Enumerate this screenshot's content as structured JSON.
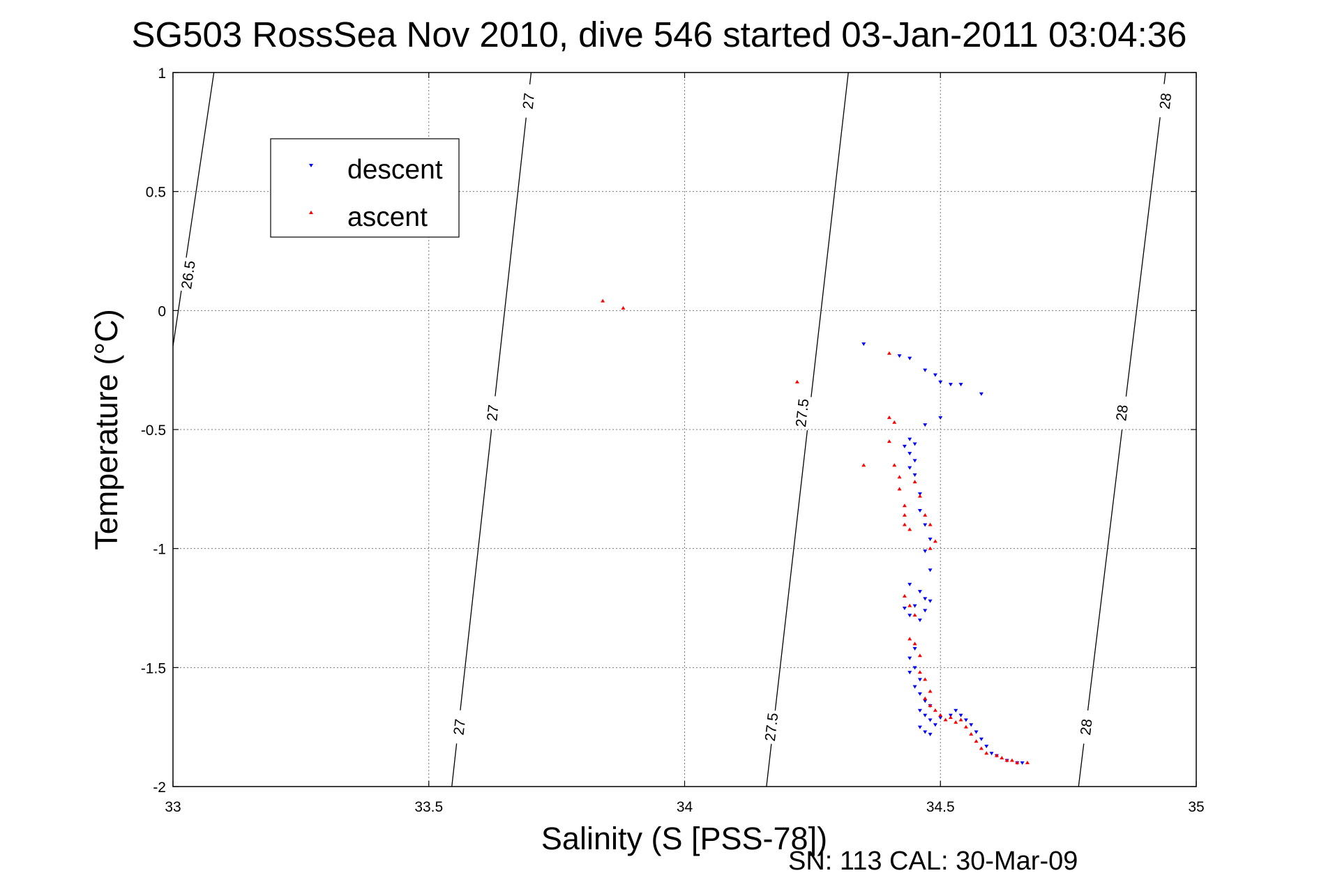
{
  "chart_data": {
    "type": "scatter",
    "title": "SG503 RossSea Nov 2010, dive 546 started 03-Jan-2011 03:04:36",
    "xlabel": "Salinity (S [PSS-78])",
    "ylabel": "Temperature (°C)",
    "xlim": [
      33,
      35
    ],
    "ylim": [
      -2,
      1
    ],
    "x_ticks": [
      "33",
      "33.5",
      "34",
      "34.5",
      "35"
    ],
    "y_ticks": [
      "1",
      "0.5",
      "0",
      "-0.5",
      "-1",
      "-1.5",
      "-2"
    ],
    "grid": true,
    "legend_position": "top-left",
    "footer": "SN: 113  CAL: 30-Mar-09",
    "contours": [
      {
        "label": "26.5",
        "points": [
          [
            33.0,
            -0.15
          ],
          [
            33.08,
            1.0
          ]
        ],
        "labels_at": [
          [
            33.03,
            0.15
          ]
        ]
      },
      {
        "label": "27",
        "points": [
          [
            33.545,
            -2.0
          ],
          [
            33.7,
            1.0
          ]
        ],
        "labels_at": [
          [
            33.56,
            -1.75
          ],
          [
            33.625,
            -0.43
          ],
          [
            33.695,
            0.88
          ]
        ]
      },
      {
        "label": "27.5",
        "points": [
          [
            34.16,
            -2.0
          ],
          [
            34.32,
            1.0
          ]
        ],
        "labels_at": [
          [
            34.17,
            -1.75
          ],
          [
            34.23,
            -0.43
          ]
        ]
      },
      {
        "label": "28",
        "points": [
          [
            34.77,
            -2.0
          ],
          [
            34.94,
            1.0
          ]
        ],
        "labels_at": [
          [
            34.785,
            -1.75
          ],
          [
            34.855,
            -0.43
          ],
          [
            34.94,
            0.88
          ]
        ]
      }
    ],
    "series": [
      {
        "name": "descent",
        "color": "#0000ff",
        "marker": "triangle-down",
        "points": [
          [
            34.35,
            -0.14
          ],
          [
            34.42,
            -0.19
          ],
          [
            34.44,
            -0.2
          ],
          [
            34.47,
            -0.25
          ],
          [
            34.49,
            -0.27
          ],
          [
            34.5,
            -0.3
          ],
          [
            34.52,
            -0.31
          ],
          [
            34.54,
            -0.31
          ],
          [
            34.58,
            -0.35
          ],
          [
            34.5,
            -0.45
          ],
          [
            34.47,
            -0.48
          ],
          [
            34.44,
            -0.54
          ],
          [
            34.45,
            -0.56
          ],
          [
            34.43,
            -0.57
          ],
          [
            34.44,
            -0.6
          ],
          [
            34.45,
            -0.63
          ],
          [
            34.44,
            -0.66
          ],
          [
            34.45,
            -0.69
          ],
          [
            34.46,
            -0.77
          ],
          [
            34.46,
            -0.84
          ],
          [
            34.47,
            -0.9
          ],
          [
            34.48,
            -0.96
          ],
          [
            34.47,
            -1.01
          ],
          [
            34.48,
            -1.09
          ],
          [
            34.44,
            -1.15
          ],
          [
            34.46,
            -1.18
          ],
          [
            34.47,
            -1.21
          ],
          [
            34.45,
            -1.24
          ],
          [
            34.43,
            -1.25
          ],
          [
            34.48,
            -1.22
          ],
          [
            34.44,
            -1.28
          ],
          [
            34.46,
            -1.3
          ],
          [
            34.47,
            -1.26
          ],
          [
            34.45,
            -1.42
          ],
          [
            34.44,
            -1.46
          ],
          [
            34.45,
            -1.5
          ],
          [
            34.44,
            -1.52
          ],
          [
            34.46,
            -1.55
          ],
          [
            34.45,
            -1.58
          ],
          [
            34.46,
            -1.61
          ],
          [
            34.47,
            -1.64
          ],
          [
            34.48,
            -1.66
          ],
          [
            34.46,
            -1.68
          ],
          [
            34.47,
            -1.7
          ],
          [
            34.48,
            -1.72
          ],
          [
            34.49,
            -1.74
          ],
          [
            34.46,
            -1.75
          ],
          [
            34.47,
            -1.77
          ],
          [
            34.48,
            -1.78
          ],
          [
            34.5,
            -1.71
          ],
          [
            34.52,
            -1.7
          ],
          [
            34.53,
            -1.68
          ],
          [
            34.54,
            -1.7
          ],
          [
            34.55,
            -1.72
          ],
          [
            34.56,
            -1.74
          ],
          [
            34.57,
            -1.77
          ],
          [
            34.58,
            -1.8
          ],
          [
            34.59,
            -1.83
          ],
          [
            34.6,
            -1.86
          ],
          [
            34.61,
            -1.87
          ],
          [
            34.63,
            -1.89
          ],
          [
            34.65,
            -1.9
          ],
          [
            34.66,
            -1.9
          ]
        ]
      },
      {
        "name": "ascent",
        "color": "#ff0000",
        "marker": "triangle-up",
        "points": [
          [
            33.84,
            0.04
          ],
          [
            33.88,
            0.01
          ],
          [
            34.22,
            -0.3
          ],
          [
            34.4,
            -0.18
          ],
          [
            34.4,
            -0.45
          ],
          [
            34.41,
            -0.47
          ],
          [
            34.4,
            -0.55
          ],
          [
            34.35,
            -0.65
          ],
          [
            34.41,
            -0.65
          ],
          [
            34.42,
            -0.7
          ],
          [
            34.42,
            -0.75
          ],
          [
            34.43,
            -0.82
          ],
          [
            34.43,
            -0.86
          ],
          [
            34.43,
            -0.9
          ],
          [
            34.44,
            -0.92
          ],
          [
            34.45,
            -0.72
          ],
          [
            34.46,
            -0.78
          ],
          [
            34.47,
            -0.86
          ],
          [
            34.48,
            -0.9
          ],
          [
            34.49,
            -0.97
          ],
          [
            34.48,
            -1.0
          ],
          [
            34.43,
            -1.2
          ],
          [
            34.44,
            -1.24
          ],
          [
            34.45,
            -1.28
          ],
          [
            34.44,
            -1.38
          ],
          [
            34.45,
            -1.4
          ],
          [
            34.46,
            -1.45
          ],
          [
            34.46,
            -1.52
          ],
          [
            34.47,
            -1.55
          ],
          [
            34.48,
            -1.6
          ],
          [
            34.47,
            -1.63
          ],
          [
            34.48,
            -1.66
          ],
          [
            34.49,
            -1.68
          ],
          [
            34.5,
            -1.7
          ],
          [
            34.51,
            -1.72
          ],
          [
            34.52,
            -1.71
          ],
          [
            34.53,
            -1.73
          ],
          [
            34.54,
            -1.72
          ],
          [
            34.55,
            -1.75
          ],
          [
            34.56,
            -1.78
          ],
          [
            34.57,
            -1.81
          ],
          [
            34.58,
            -1.84
          ],
          [
            34.59,
            -1.86
          ],
          [
            34.61,
            -1.87
          ],
          [
            34.62,
            -1.88
          ],
          [
            34.63,
            -1.89
          ],
          [
            34.64,
            -1.89
          ],
          [
            34.65,
            -1.9
          ],
          [
            34.67,
            -1.9
          ]
        ]
      }
    ]
  }
}
